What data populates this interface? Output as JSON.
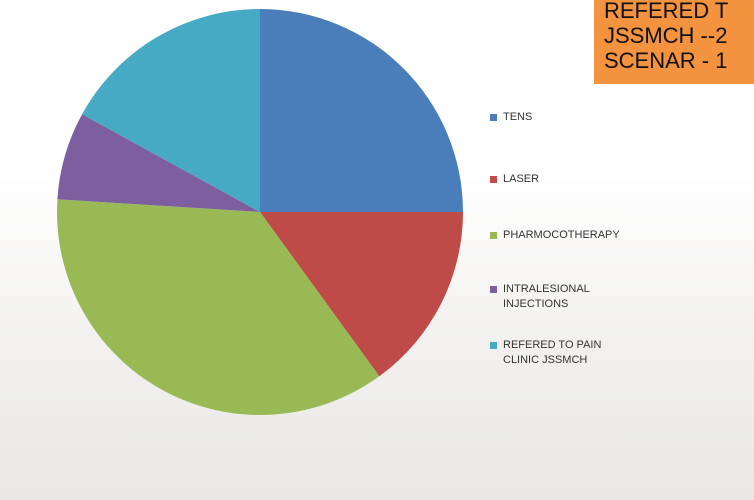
{
  "chart_data": {
    "type": "pie",
    "categories": [
      "TENS",
      "LASER",
      "PHARMOCOTHERAPY",
      "INTRALESIONAL INJECTIONS",
      "REFERED TO PAIN CLINIC JSSMCH"
    ],
    "values": [
      25,
      15,
      36,
      7,
      17
    ],
    "colors": [
      "#4a7ebb",
      "#be4b48",
      "#98b954",
      "#7d5fa0",
      "#46aac5"
    ],
    "legend": "right"
  },
  "note_box": {
    "lines": [
      "REFERED T",
      "JSSMCH --2",
      "SCENAR - 1"
    ]
  }
}
